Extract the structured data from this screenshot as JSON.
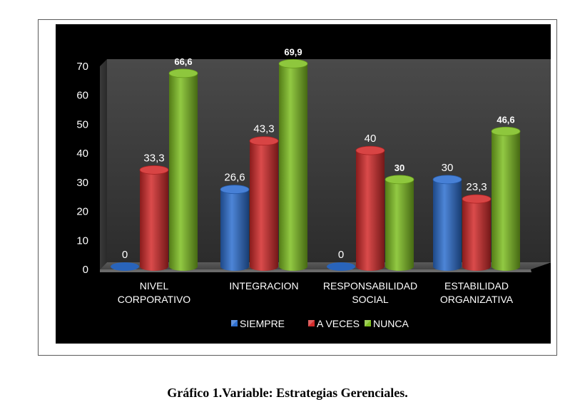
{
  "caption": "Gráfico 1.Variable: Estrategias Gerenciales.",
  "chart_data": {
    "type": "bar",
    "style": "3d-cylinder",
    "background": "#000000",
    "categories": [
      [
        "NIVEL",
        "CORPORATIVO"
      ],
      [
        "INTEGRACION"
      ],
      [
        "RESPONSABILIDAD",
        "SOCIAL"
      ],
      [
        "ESTABILIDAD",
        "ORGANIZATIVA"
      ]
    ],
    "series": [
      {
        "name": "SIEMPRE",
        "color": "#2e6fd0",
        "values": [
          0,
          26.6,
          0,
          30
        ],
        "labels": [
          "0",
          "26,6",
          "0",
          "30"
        ],
        "label_bold": false
      },
      {
        "name": "A VECES",
        "color": "#d32b2b",
        "values": [
          33.3,
          43.3,
          40,
          23.3
        ],
        "labels": [
          "33,3",
          "43,3",
          "40",
          "23,3"
        ],
        "label_bold": false
      },
      {
        "name": "NUNCA",
        "color": "#7fbf22",
        "values": [
          66.6,
          69.9,
          30,
          46.6
        ],
        "labels": [
          "66,6",
          "69,9",
          "30",
          "46,6"
        ],
        "label_bold": true
      }
    ],
    "y_ticks": [
      "0",
      "10",
      "20",
      "30",
      "40",
      "50",
      "60",
      "70"
    ],
    "ylim": [
      0,
      70
    ],
    "legend_position": "bottom",
    "grid": false
  }
}
